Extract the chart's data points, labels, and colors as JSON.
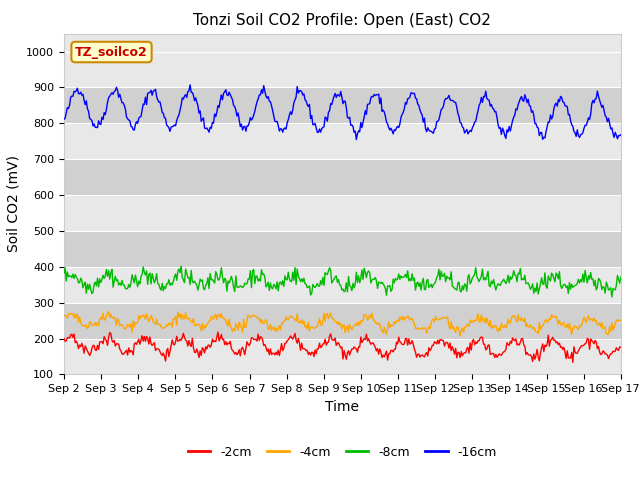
{
  "title": "Tonzi Soil CO2 Profile: Open (East) CO2",
  "xlabel": "Time",
  "ylabel": "Soil CO2 (mV)",
  "ylim": [
    100,
    1050
  ],
  "yticks": [
    100,
    200,
    300,
    400,
    500,
    600,
    700,
    800,
    900,
    1000
  ],
  "xtick_labels": [
    "Sep 2",
    "Sep 3",
    "Sep 4",
    "Sep 5",
    "Sep 6",
    "Sep 7",
    "Sep 8",
    "Sep 9",
    "Sep 10",
    "Sep 11",
    "Sep 12",
    "Sep 13",
    "Sep 14",
    "Sep 15",
    "Sep 16",
    "Sep 17"
  ],
  "n_days": 15,
  "colors": {
    "-2cm": "#ff0000",
    "-4cm": "#ffa500",
    "-8cm": "#00bb00",
    "-16cm": "#0000ff"
  },
  "legend_labels": [
    "-2cm",
    "-4cm",
    "-8cm",
    "-16cm"
  ],
  "legend_box_label": "TZ_soilco2",
  "background_color": "#ffffff",
  "plot_bg_light": "#e8e8e8",
  "plot_bg_dark": "#d0d0d0",
  "title_fontsize": 11,
  "axis_fontsize": 10,
  "tick_fontsize": 8,
  "legend_fontsize": 9
}
